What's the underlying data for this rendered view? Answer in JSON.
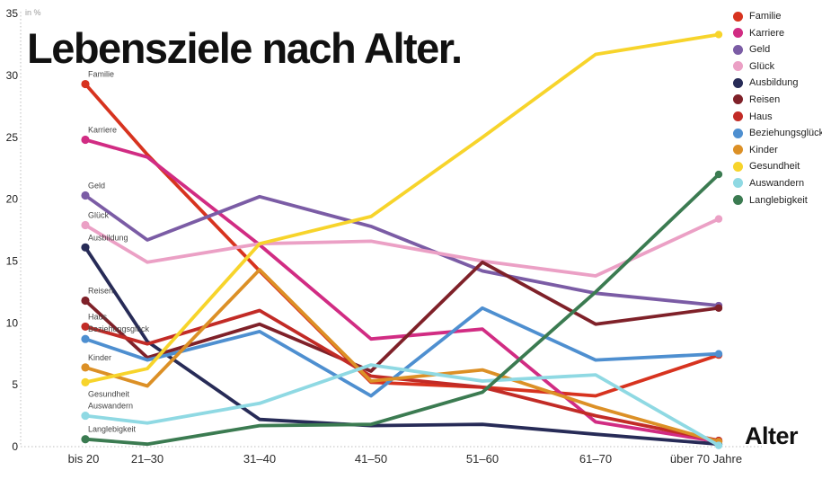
{
  "title": "Lebensziele nach Alter.",
  "y_axis_unit": "in %",
  "x_axis_title": "Alter",
  "chart_data": {
    "type": "line",
    "title": "Lebensziele nach Alter.",
    "ylabel": "in %",
    "xlabel": "Alter",
    "ylim": [
      0,
      35
    ],
    "y_ticks": [
      0,
      5,
      10,
      15,
      20,
      25,
      30,
      35
    ],
    "grid": "dotted-axes-only",
    "legend_position": "top-right",
    "categories": [
      "bis 20",
      "21–30",
      "31–40",
      "41–50",
      "51–60",
      "61–70",
      "über 70 Jahre"
    ],
    "series": [
      {
        "name": "Familie",
        "color": "#d7331f",
        "values": [
          29.3,
          23.6,
          14.2,
          5.2,
          4.8,
          4.1,
          7.4
        ]
      },
      {
        "name": "Karriere",
        "color": "#d12c83",
        "values": [
          24.8,
          23.4,
          16.3,
          8.7,
          9.5,
          2.0,
          0.4
        ]
      },
      {
        "name": "Geld",
        "color": "#7b5ca5",
        "values": [
          20.3,
          16.7,
          20.2,
          17.8,
          14.2,
          12.4,
          11.4
        ]
      },
      {
        "name": "Glück",
        "color": "#eba0c5",
        "values": [
          17.9,
          14.9,
          16.4,
          16.6,
          15.0,
          13.8,
          18.4
        ]
      },
      {
        "name": "Ausbildung",
        "color": "#272b57",
        "values": [
          16.1,
          8.5,
          2.2,
          1.7,
          1.8,
          1.0,
          0.2
        ]
      },
      {
        "name": "Reisen",
        "color": "#7f2129",
        "values": [
          11.8,
          7.2,
          9.9,
          6.1,
          14.9,
          9.9,
          11.2
        ]
      },
      {
        "name": "Haus",
        "color": "#c22b26",
        "values": [
          9.7,
          8.3,
          11.0,
          5.7,
          4.8,
          2.5,
          0.5
        ]
      },
      {
        "name": "Beziehungsglück",
        "color": "#4e8fd0",
        "values": [
          8.7,
          7.0,
          9.3,
          4.1,
          11.2,
          7.0,
          7.5
        ]
      },
      {
        "name": "Kinder",
        "color": "#dc9026",
        "values": [
          6.4,
          4.9,
          14.3,
          5.3,
          6.2,
          3.2,
          0.4
        ]
      },
      {
        "name": "Gesundheit",
        "color": "#f7d42b",
        "values": [
          5.2,
          6.3,
          16.4,
          18.6,
          25.0,
          31.7,
          33.3
        ],
        "label_position": "below"
      },
      {
        "name": "Auswandern",
        "color": "#8fd9e3",
        "values": [
          2.5,
          1.9,
          3.5,
          6.6,
          5.3,
          5.8,
          0.1
        ]
      },
      {
        "name": "Langlebigkeit",
        "color": "#3b7b51",
        "values": [
          0.6,
          0.2,
          1.7,
          1.8,
          4.4,
          12.5,
          22.0
        ]
      }
    ]
  }
}
